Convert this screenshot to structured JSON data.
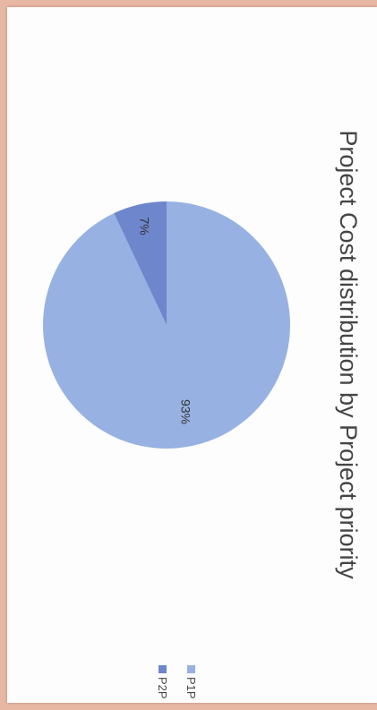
{
  "chart_data": {
    "type": "pie",
    "title": "Project Cost distribution by Project priority",
    "categories": [
      "P1P",
      "P2P"
    ],
    "values": [
      93,
      7
    ],
    "labels": [
      "93%",
      "7%"
    ],
    "colors": [
      "#97b1e2",
      "#6e86cc"
    ],
    "legend_position": "bottom"
  }
}
